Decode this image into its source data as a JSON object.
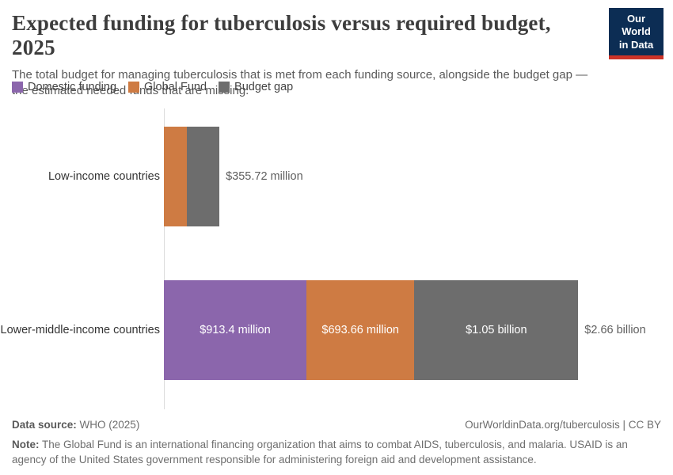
{
  "header": {
    "title": "Expected funding for tuberculosis versus required budget, 2025",
    "subtitle": "The total budget for managing tuberculosis that is met from each funding source, alongside the budget gap — the estimated needed funds that are missing.",
    "logo": {
      "line1": "Our World",
      "line2": "in Data",
      "bg_color": "#0C2D54",
      "accent_color": "#CC3328"
    }
  },
  "chart_data": {
    "type": "bar",
    "orientation": "horizontal",
    "stacked": true,
    "title": "Expected funding for tuberculosis versus required budget, 2025",
    "unit": "US$ million",
    "categories": [
      "Low-income countries",
      "Lower-middle-income countries"
    ],
    "series": [
      {
        "name": "Domestic funding",
        "color": "#8B66AC",
        "values_million_usd": [
          0,
          913.4
        ]
      },
      {
        "name": "Global Fund",
        "color": "#CE7B43",
        "values_million_usd": [
          147,
          693.66
        ]
      },
      {
        "name": "Budget gap",
        "color": "#6D6D6D",
        "values_million_usd": [
          208.72,
          1050
        ]
      }
    ],
    "segment_labels": [
      [
        null,
        null,
        null
      ],
      [
        "$913.4 million",
        "$693.66 million",
        "$1.05 billion"
      ]
    ],
    "totals_million_usd": [
      355.72,
      2660
    ],
    "total_labels": [
      "$355.72 million",
      "$2.66 billion"
    ],
    "legend_position": "top",
    "gridlines": false,
    "axis_line_color": "#dcdcdc"
  },
  "footer": {
    "source_label": "Data source:",
    "source_value": "WHO (2025)",
    "link": "OurWorldinData.org/tuberculosis | CC BY",
    "note_label": "Note:",
    "note_text": "The Global Fund is an international financing organization that aims to combat AIDS, tuberculosis, and malaria. USAID is an agency of the United States government responsible for administering foreign aid and development assistance."
  }
}
